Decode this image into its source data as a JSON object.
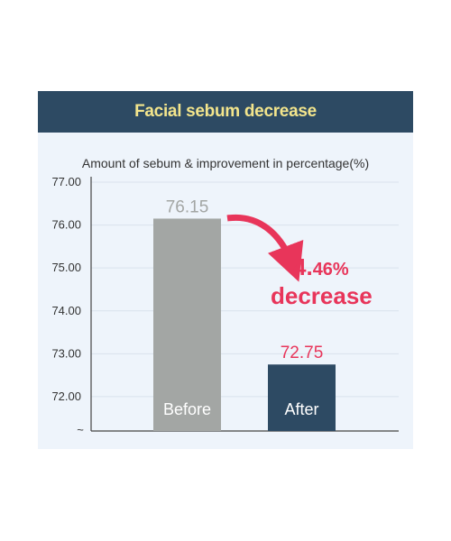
{
  "header": {
    "title": "Facial sebum decrease"
  },
  "chart_data": {
    "type": "bar",
    "title": "Facial sebum decrease",
    "subtitle": "Amount of sebum & improvement in percentage(%)",
    "categories": [
      "Before",
      "After"
    ],
    "values": [
      76.15,
      72.75
    ],
    "value_labels": [
      "76.15",
      "72.75"
    ],
    "y_ticks": [
      "77.00",
      "76.00",
      "75.00",
      "74.00",
      "73.00",
      "72.00"
    ],
    "y_tick_values": [
      77,
      76,
      75,
      74,
      73,
      72
    ],
    "axis_break_symbol": "~",
    "ylim": [
      71.2,
      77
    ],
    "grid": true,
    "annotation": {
      "number": "4.",
      "percent": "46%",
      "text": "decrease"
    },
    "colors": {
      "before": "#a3a6a4",
      "after": "#2d4a63",
      "accent": "#e8355a",
      "header_bg": "#2d4a63",
      "header_text": "#f3e58c"
    }
  }
}
